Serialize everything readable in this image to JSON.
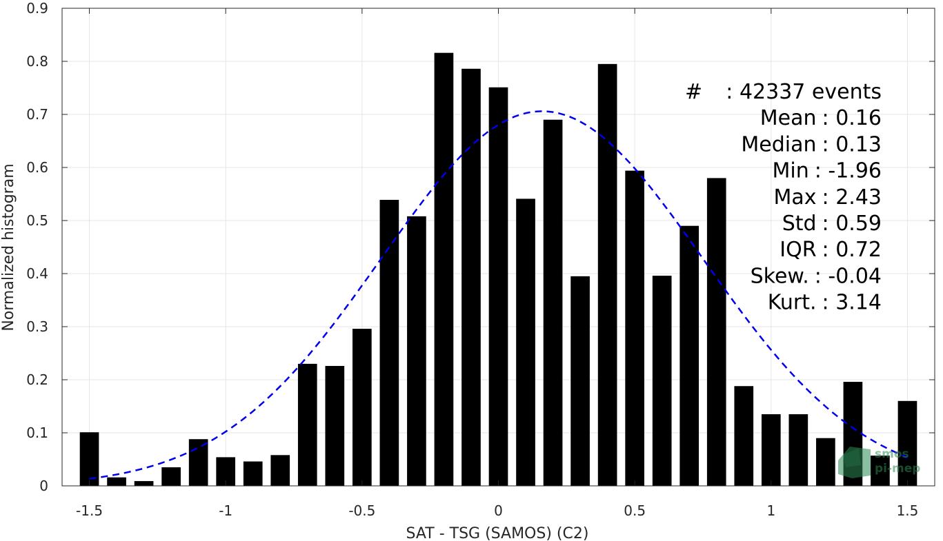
{
  "chart_data": {
    "type": "bar",
    "xlabel": "SAT - TSG (SAMOS) (C2)",
    "ylabel": "Normalized histogram",
    "xlim": [
      -1.6,
      1.6
    ],
    "ylim": [
      0,
      0.9
    ],
    "xticks": [
      -1.5,
      -1,
      -0.5,
      0,
      0.5,
      1,
      1.5
    ],
    "xtick_labels": [
      "-1.5",
      "-1",
      "-0.5",
      "0",
      "0.5",
      "1",
      "1.5"
    ],
    "yticks": [
      0,
      0.1,
      0.2,
      0.3,
      0.4,
      0.5,
      0.6,
      0.7,
      0.8,
      0.9
    ],
    "ytick_labels": [
      "0",
      "0.1",
      "0.2",
      "0.3",
      "0.4",
      "0.5",
      "0.6",
      "0.7",
      "0.8",
      "0.9"
    ],
    "grid": true,
    "bar_width": 0.07,
    "bars": {
      "x": [
        -1.5,
        -1.4,
        -1.3,
        -1.2,
        -1.1,
        -1.0,
        -0.9,
        -0.8,
        -0.7,
        -0.6,
        -0.5,
        -0.4,
        -0.3,
        -0.2,
        -0.1,
        0.0,
        0.1,
        0.2,
        0.3,
        0.4,
        0.5,
        0.6,
        0.7,
        0.8,
        0.9,
        1.0,
        1.1,
        1.2,
        1.3,
        1.4,
        1.5
      ],
      "values": [
        0.101,
        0.016,
        0.009,
        0.035,
        0.088,
        0.054,
        0.046,
        0.058,
        0.23,
        0.226,
        0.296,
        0.539,
        0.508,
        0.816,
        0.786,
        0.751,
        0.541,
        0.69,
        0.395,
        0.795,
        0.594,
        0.396,
        0.49,
        0.58,
        0.188,
        0.135,
        0.135,
        0.09,
        0.196,
        0.057,
        0.16
      ],
      "color": "#000000"
    },
    "fit_curve": {
      "style": "dashed",
      "color": "#0000ee",
      "mean": 0.16,
      "std": 0.59,
      "peak": 0.706,
      "x_range": [
        -1.5,
        1.5
      ]
    },
    "stats": [
      {
        "label": "#",
        "sep": ":",
        "value": "42337 events"
      },
      {
        "label": "Mean",
        "sep": ":",
        "value": "0.16"
      },
      {
        "label": "Median",
        "sep": ":",
        "value": "0.13"
      },
      {
        "label": "Min",
        "sep": ":",
        "value": "-1.96"
      },
      {
        "label": "Max",
        "sep": ":",
        "value": "2.43"
      },
      {
        "label": "Std",
        "sep": ":",
        "value": "0.59"
      },
      {
        "label": "IQR",
        "sep": ":",
        "value": "0.72"
      },
      {
        "label": "Skew.",
        "sep": ":",
        "value": "-0.04"
      },
      {
        "label": "Kurt.",
        "sep": ":",
        "value": "3.14"
      }
    ]
  },
  "watermark": {
    "line1": "smos",
    "line2": "pi-mep",
    "color": "#2e8b57"
  }
}
